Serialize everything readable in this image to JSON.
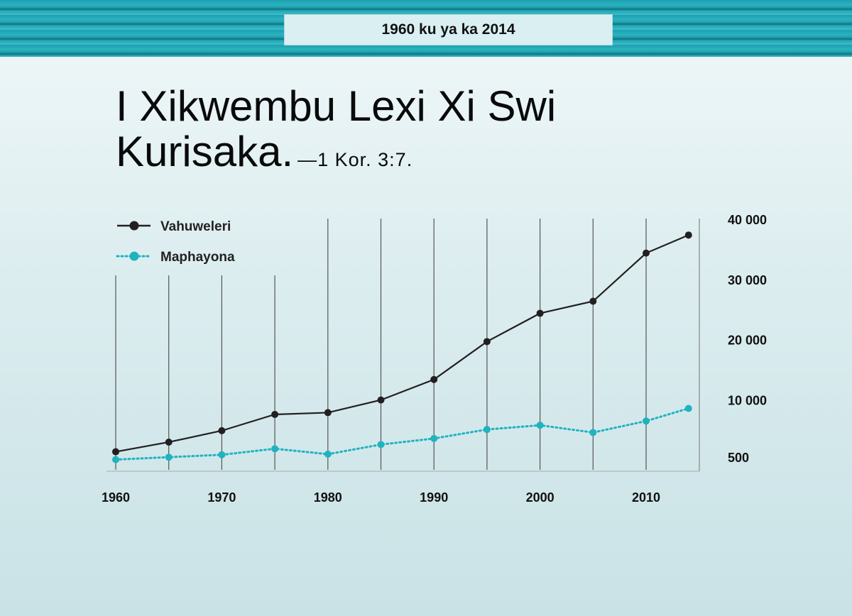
{
  "header": {
    "banner_label": "1960 ku ya ka 2014",
    "title": "I Xikwembu Lexi Xi Swi Kurisaka.",
    "reference": "—1 Kor. 3:7."
  },
  "chart_data": {
    "type": "line",
    "title": "",
    "xlabel": "",
    "ylabel": "",
    "x": [
      1960,
      1965,
      1970,
      1975,
      1980,
      1985,
      1990,
      1995,
      2000,
      2005,
      2010,
      2014
    ],
    "x_ticks": [
      "1960",
      "1970",
      "1980",
      "1990",
      "2000",
      "2010"
    ],
    "y_ticks": [
      "500",
      "10 000",
      "20 000",
      "30 000",
      "40 000"
    ],
    "y_tick_values": [
      500,
      10000,
      20000,
      30000,
      40000
    ],
    "xlim": [
      1960,
      2015
    ],
    "ylim": [
      -1500,
      40000
    ],
    "grid": "vertical lines",
    "legend_position": "top-left",
    "series": [
      {
        "name": "Vahuweleri",
        "color": "#231f20",
        "style": "solid",
        "values": [
          1500,
          3100,
          5000,
          7700,
          8000,
          10100,
          13500,
          19800,
          24500,
          26500,
          34500,
          37500
        ]
      },
      {
        "name": "Maphayona",
        "color": "#1fb3bf",
        "style": "dotted",
        "values": [
          200,
          600,
          1000,
          2000,
          1100,
          2700,
          3700,
          5200,
          5900,
          4700,
          6600,
          8700
        ]
      }
    ]
  }
}
